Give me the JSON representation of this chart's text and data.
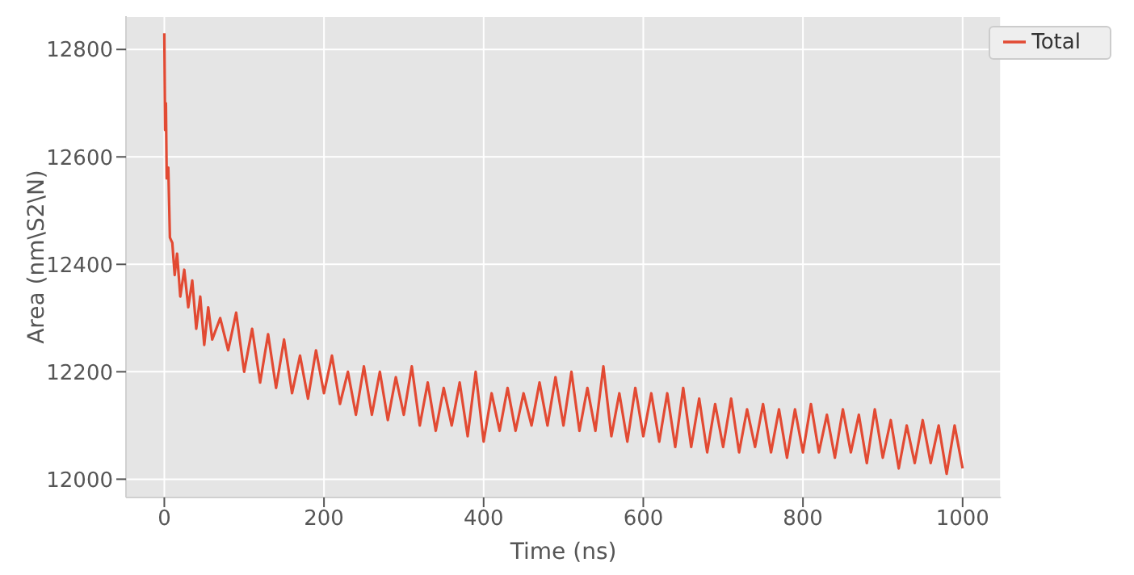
{
  "chart_data": {
    "type": "line",
    "xlabel": "Time (ns)",
    "ylabel": "Area (nm\\S2\\N)",
    "x": [
      0,
      1,
      2,
      3,
      5,
      7,
      10,
      13,
      16,
      20,
      25,
      30,
      35,
      40,
      45,
      50,
      55,
      60,
      70,
      80,
      90,
      100,
      110,
      120,
      130,
      140,
      150,
      160,
      170,
      180,
      190,
      200,
      210,
      220,
      230,
      240,
      250,
      260,
      270,
      280,
      290,
      300,
      310,
      320,
      330,
      340,
      350,
      360,
      370,
      380,
      390,
      400,
      410,
      420,
      430,
      440,
      450,
      460,
      470,
      480,
      490,
      500,
      510,
      520,
      530,
      540,
      550,
      560,
      570,
      580,
      590,
      600,
      610,
      620,
      630,
      640,
      650,
      660,
      670,
      680,
      690,
      700,
      710,
      720,
      730,
      740,
      750,
      760,
      770,
      780,
      790,
      800,
      810,
      820,
      830,
      840,
      850,
      860,
      870,
      880,
      890,
      900,
      910,
      920,
      930,
      940,
      950,
      960,
      970,
      980,
      990,
      1000
    ],
    "series": [
      {
        "name": "Total",
        "color": "#e24a33",
        "values": [
          12830,
          12650,
          12700,
          12560,
          12580,
          12450,
          12440,
          12380,
          12420,
          12340,
          12390,
          12320,
          12370,
          12280,
          12340,
          12250,
          12320,
          12260,
          12300,
          12240,
          12310,
          12200,
          12280,
          12180,
          12270,
          12170,
          12260,
          12160,
          12230,
          12150,
          12240,
          12160,
          12230,
          12140,
          12200,
          12120,
          12210,
          12120,
          12200,
          12110,
          12190,
          12120,
          12210,
          12100,
          12180,
          12090,
          12170,
          12100,
          12180,
          12080,
          12200,
          12070,
          12160,
          12090,
          12170,
          12090,
          12160,
          12100,
          12180,
          12100,
          12190,
          12100,
          12200,
          12090,
          12170,
          12090,
          12210,
          12080,
          12160,
          12070,
          12170,
          12080,
          12160,
          12070,
          12160,
          12060,
          12170,
          12060,
          12150,
          12050,
          12140,
          12060,
          12150,
          12050,
          12130,
          12060,
          12140,
          12050,
          12130,
          12040,
          12130,
          12050,
          12140,
          12050,
          12120,
          12040,
          12130,
          12050,
          12120,
          12030,
          12130,
          12040,
          12110,
          12020,
          12100,
          12030,
          12110,
          12030,
          12100,
          12010,
          12100,
          12020
        ]
      }
    ],
    "xlim": [
      -48,
      1048
    ],
    "ylim": [
      11966,
      12862
    ],
    "xticks": [
      0,
      200,
      400,
      600,
      800,
      1000
    ],
    "yticks": [
      12000,
      12200,
      12400,
      12600,
      12800
    ],
    "grid": true,
    "legend": "top right"
  }
}
